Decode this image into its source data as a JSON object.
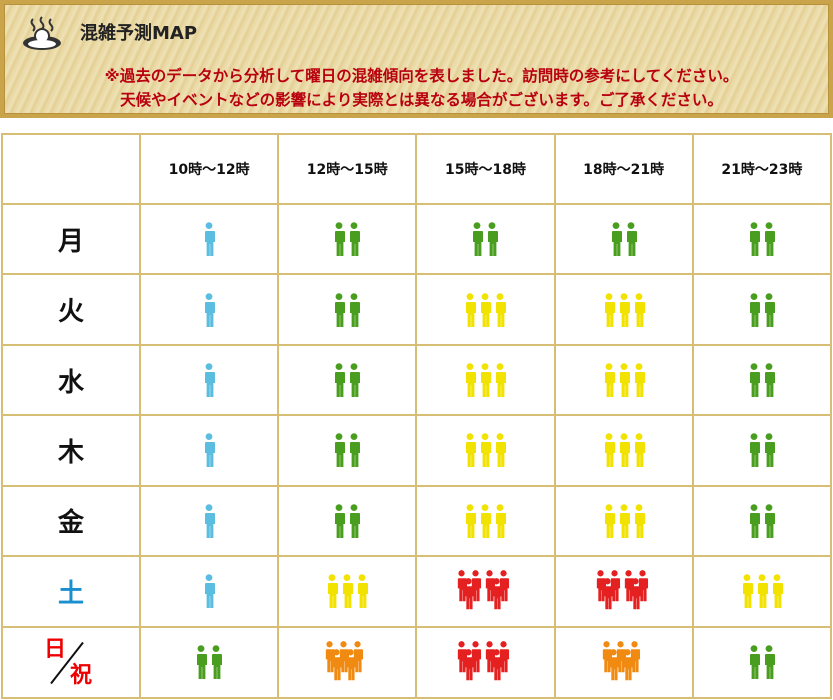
{
  "header": {
    "title": "混雑予測MAP",
    "note_line1": "※過去のデータから分析して曜日の混雑傾向を表しました。訪問時の参考にしてください。",
    "note_line2": "天候やイベントなどの影響により実際とは異なる場合がございます。ご了承ください。",
    "logo_icon": "hot-spring-bath-icon"
  },
  "time_slots": [
    "10時～12時",
    "12時～15時",
    "15時～18時",
    "18時～21時",
    "21時～23時"
  ],
  "colors": {
    "level1": "#5bbde0",
    "level2": "#4a9e1f",
    "level3": "#f2e200",
    "level4": "#f08a10",
    "level5": "#e42020",
    "border": "#d6bf74",
    "saturday": "#1a8fd0",
    "holiday": "#e00000"
  },
  "legend_levels": {
    "level1": {
      "figures": 1,
      "color": "level1"
    },
    "level2": {
      "figures": 2,
      "color": "level2"
    },
    "level3": {
      "figures": 3,
      "color": "level3"
    },
    "level4": {
      "figures": 5,
      "color": "level4"
    },
    "level5": {
      "figures": 6,
      "color": "level5"
    }
  },
  "rows": [
    {
      "day": "月",
      "levels": [
        1,
        2,
        2,
        2,
        2
      ]
    },
    {
      "day": "火",
      "levels": [
        1,
        2,
        3,
        3,
        2
      ]
    },
    {
      "day": "水",
      "levels": [
        1,
        2,
        3,
        3,
        2
      ]
    },
    {
      "day": "木",
      "levels": [
        1,
        2,
        3,
        3,
        2
      ]
    },
    {
      "day": "金",
      "levels": [
        1,
        2,
        3,
        3,
        2
      ]
    },
    {
      "day": "土",
      "levels": [
        1,
        3,
        5,
        5,
        3
      ]
    },
    {
      "day_top": "日",
      "day_bottom": "祝",
      "levels": [
        2,
        4,
        5,
        4,
        2
      ]
    }
  ]
}
